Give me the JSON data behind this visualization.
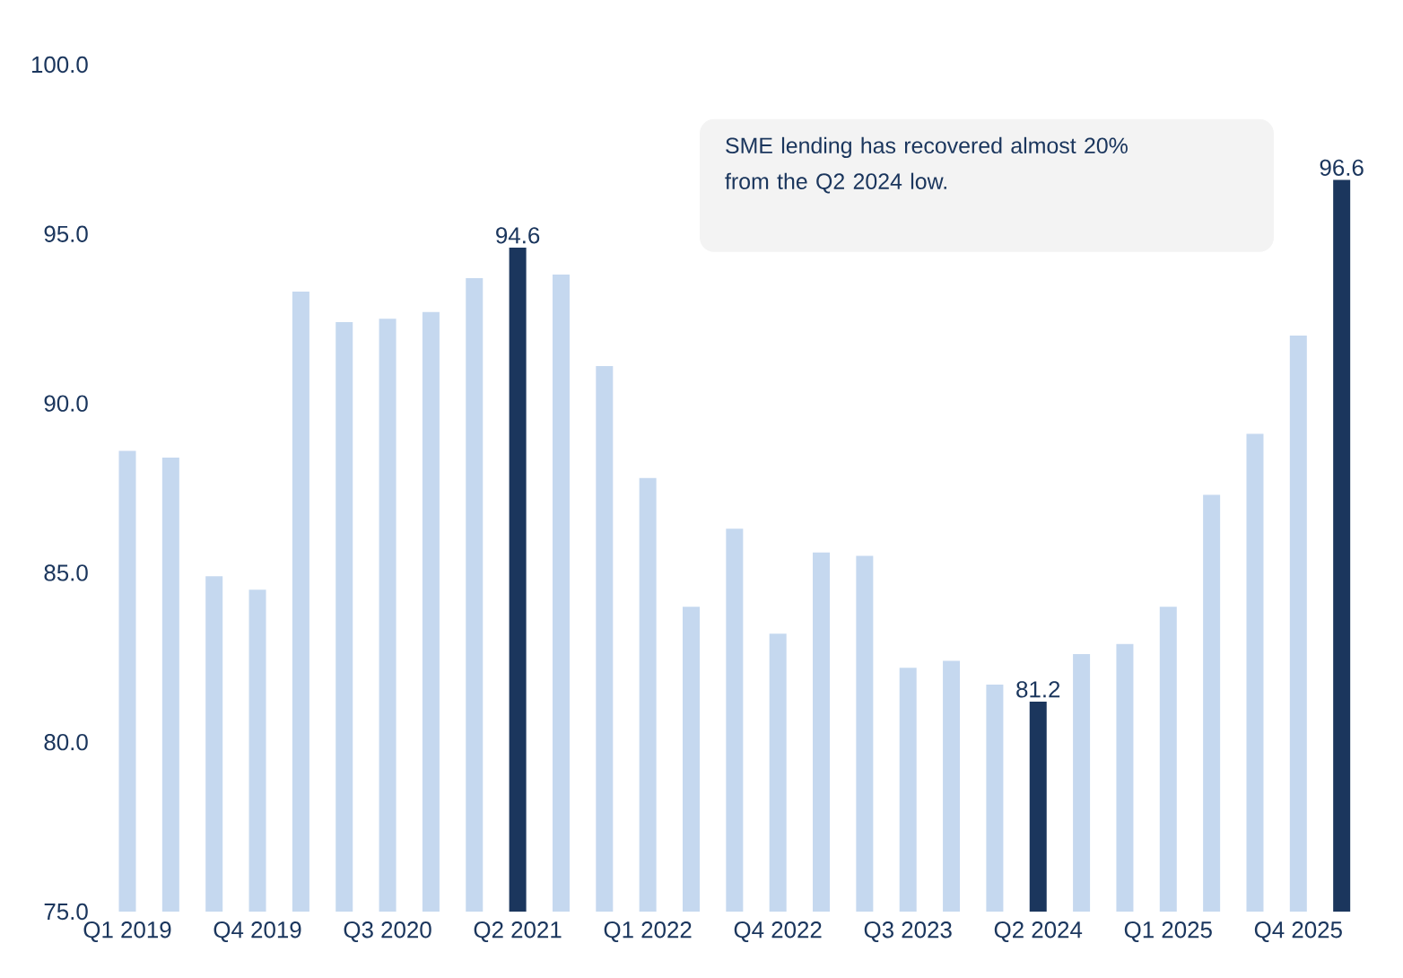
{
  "chart_data": {
    "type": "bar",
    "categories": [
      "Q1 2019",
      null,
      null,
      "Q4 2019",
      null,
      null,
      "Q3 2020",
      null,
      null,
      "Q2 2021",
      null,
      null,
      "Q1 2022",
      null,
      null,
      "Q4 2022",
      null,
      null,
      "Q3 2023",
      null,
      null,
      "Q2 2024",
      null,
      null,
      "Q1 2025",
      null,
      null,
      "Q4 2025",
      null
    ],
    "values": [
      88.6,
      88.4,
      84.9,
      84.5,
      93.3,
      92.4,
      92.5,
      92.7,
      93.7,
      94.6,
      93.8,
      91.1,
      87.8,
      84.0,
      86.3,
      83.2,
      85.6,
      85.5,
      82.2,
      82.4,
      81.7,
      81.2,
      82.6,
      82.9,
      84.0,
      87.3,
      89.1,
      92.0,
      96.6
    ],
    "colors": [
      "#c5d8ef",
      "#c5d8ef",
      "#c5d8ef",
      "#c5d8ef",
      "#c5d8ef",
      "#c5d8ef",
      "#c5d8ef",
      "#c5d8ef",
      "#c5d8ef",
      "#1b365d",
      "#c5d8ef",
      "#c5d8ef",
      "#c5d8ef",
      "#c5d8ef",
      "#c5d8ef",
      "#c5d8ef",
      "#c5d8ef",
      "#c5d8ef",
      "#c5d8ef",
      "#c5d8ef",
      "#c5d8ef",
      "#1b365d",
      "#c5d8ef",
      "#c5d8ef",
      "#c5d8ef",
      "#c5d8ef",
      "#c5d8ef",
      "#c5d8ef",
      "#1b365d"
    ],
    "value_labels": [
      null,
      null,
      null,
      null,
      null,
      null,
      null,
      null,
      null,
      "94.6",
      null,
      null,
      null,
      null,
      null,
      null,
      null,
      null,
      null,
      null,
      null,
      "81.2",
      null,
      null,
      null,
      null,
      null,
      null,
      "96.6"
    ],
    "ylim": [
      75,
      100
    ],
    "yticks": [
      {
        "value": 75,
        "label": "75.0"
      },
      {
        "value": 80,
        "label": "80.0"
      },
      {
        "value": 85,
        "label": "85.0"
      },
      {
        "value": 90,
        "label": "90.0"
      },
      {
        "value": 95,
        "label": "95.0"
      },
      {
        "value": 100,
        "label": "100.0"
      }
    ],
    "annotations": [
      "SME lending has recovered almost 20% from the Q2 2024 low."
    ]
  }
}
